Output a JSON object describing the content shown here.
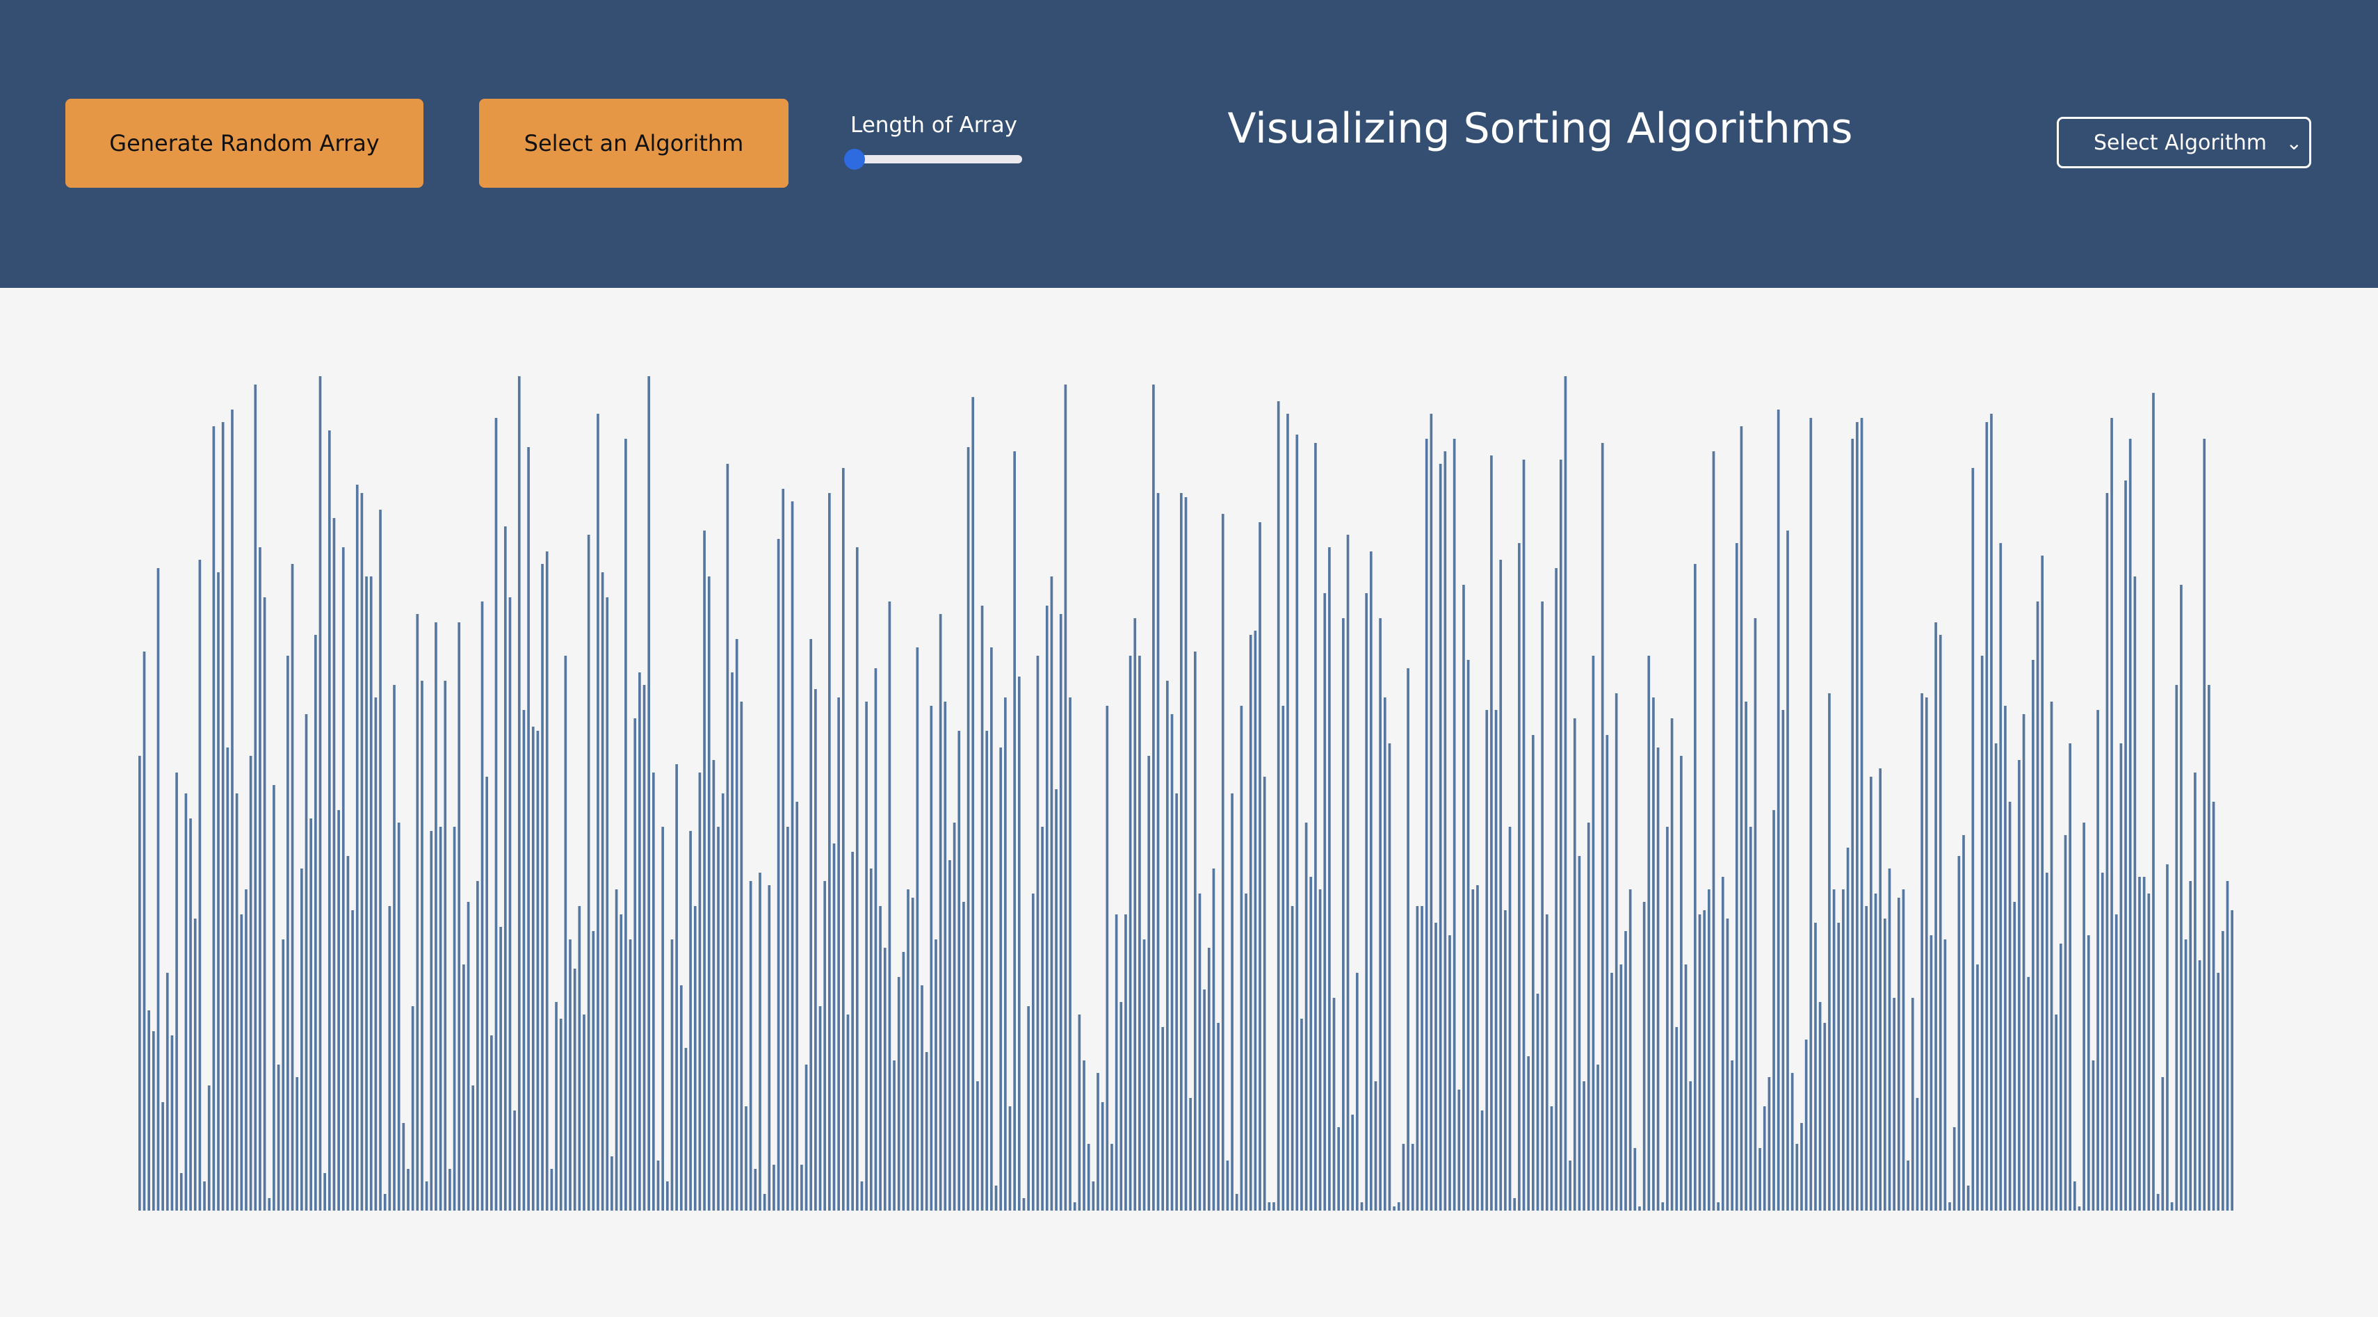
{
  "header": {
    "generate_button": "Generate Random Array",
    "select_button": "Select an Algorithm",
    "slider_label": "Length of Array",
    "slider_value": 0,
    "title": "Visualizing Sorting Algorithms",
    "algorithm_select": "Select Algorithm"
  },
  "colors": {
    "header_bg": "#354f73",
    "button_bg": "#e69745",
    "bar": "#5677a0",
    "background": "#f5f5f5",
    "slider_thumb": "#2f6be0"
  },
  "icons": {
    "dropdown": "chevron-down-icon"
  },
  "chart_data": {
    "type": "bar",
    "ylim": [
      0,
      100
    ],
    "values": [
      54.5,
      67,
      24,
      21.5,
      77,
      13,
      28.5,
      21,
      52.5,
      4.5,
      50,
      47,
      35,
      78,
      3.5,
      15,
      94,
      76.5,
      94.5,
      55.5,
      96,
      50,
      35.5,
      38.5,
      54.5,
      99,
      79.5,
      73.5,
      1.5,
      51,
      17.5,
      32.5,
      66.5,
      77.5,
      16,
      41,
      59.5,
      47,
      69,
      100,
      4.5,
      93.5,
      83,
      48,
      79.5,
      42.5,
      36,
      87,
      86,
      76,
      76,
      61.5,
      84,
      2,
      36.5,
      63,
      46.5,
      10.5,
      5,
      24.5,
      71.5,
      63.5,
      3.5,
      45.5,
      70.5,
      46,
      63.5,
      5,
      46,
      70.5,
      29.5,
      37,
      15,
      39.5,
      73,
      52,
      21,
      95,
      34,
      82,
      73.5,
      12,
      100,
      60,
      91.5,
      58,
      57.5,
      77.5,
      79,
      5,
      25,
      23,
      66.5,
      32.5,
      29,
      36.5,
      23.5,
      81,
      33.5,
      95.5,
      76.5,
      73.5,
      6.5,
      38.5,
      35.5,
      92.5,
      32.5,
      59,
      64.5,
      63,
      100,
      52.5,
      6,
      46,
      3.5,
      32.5,
      53.5,
      27,
      19.5,
      45.5,
      36.5,
      52.5,
      81.5,
      76,
      54,
      46,
      50,
      89.5,
      64.5,
      68.5,
      61,
      12.5,
      39.5,
      5,
      40.5,
      2,
      39,
      5.5,
      80.5,
      86.5,
      46,
      85,
      49,
      5.5,
      17.5,
      68.5,
      62.5,
      24.5,
      39.5,
      86,
      44,
      61.5,
      89,
      23.5,
      43,
      79.5,
      3.5,
      61,
      41,
      65,
      36.5,
      31.5,
      73,
      18,
      28,
      31,
      38.5,
      37.5,
      67.5,
      27,
      19,
      60.5,
      32.5,
      71.5,
      61,
      42,
      46.5,
      57.5,
      37,
      91.5,
      97.5,
      15.5,
      72.5,
      57.5,
      67.5,
      3,
      55.5,
      61.5,
      12.5,
      91,
      64,
      1.5,
      24.5,
      38,
      66.5,
      46,
      72.5,
      76,
      50.5,
      71.5,
      99,
      61.5,
      1,
      23.5,
      18,
      8,
      3.5,
      16.5,
      13,
      60.5,
      8,
      35.5,
      25,
      35.5,
      66.5,
      71,
      66.5,
      32.5,
      54.5,
      99,
      86,
      22,
      63.5,
      59.5,
      50,
      86,
      85.5,
      13.5,
      67,
      38,
      26.5,
      31.5,
      41,
      22.5,
      83.5,
      6,
      50,
      2,
      60.5,
      38,
      69,
      69.5,
      82.5,
      52,
      1,
      1,
      97,
      60.5,
      95.5,
      36.5,
      93,
      23,
      46.5,
      40,
      92,
      38.5,
      74,
      79.5,
      25.5,
      10,
      71,
      81,
      11.5,
      28.5,
      1,
      74,
      79,
      15.5,
      71,
      61.5,
      56,
      0.5,
      1,
      8,
      65,
      8,
      36.5,
      36.5,
      92.5,
      95.5,
      34.5,
      89.5,
      91,
      33,
      92.5,
      14.5,
      75,
      66,
      38.5,
      39,
      12,
      60,
      90.5,
      60,
      78,
      36,
      46,
      1.5,
      80,
      90,
      18.5,
      57,
      26,
      73,
      35.5,
      12.5,
      77,
      90,
      100,
      6,
      59,
      42.5,
      15.5,
      46.5,
      66.5,
      17.5,
      92,
      57,
      28.5,
      62,
      29.5,
      33.5,
      38.5,
      7.5,
      0.5,
      37,
      66.5,
      61.5,
      55.5,
      1,
      46,
      59,
      22,
      54.5,
      29.5,
      15.5,
      77.5,
      35.5,
      36,
      38.5,
      91,
      1,
      40,
      35,
      18,
      80,
      94,
      61,
      46,
      71,
      7.5,
      12.5,
      16,
      48,
      96,
      60,
      81.5,
      16.5,
      8,
      10.5,
      20.5,
      95,
      34.5,
      25,
      22.5,
      62,
      38.5,
      34.5,
      38.5,
      43.5,
      92.5,
      94.5,
      95,
      36.5,
      52,
      38,
      53,
      35,
      41,
      25.5,
      37.5,
      38.5,
      6,
      25.5,
      13.5,
      62,
      61.5,
      33,
      70.5,
      69,
      32.5,
      1,
      10,
      42.5,
      45,
      3,
      89,
      29.5,
      66.5,
      94.5,
      95.5,
      56,
      80,
      60.5,
      49,
      37,
      54,
      59.5,
      28,
      66,
      73,
      78.5,
      40.5,
      61,
      23.5,
      32,
      45,
      56,
      3.5,
      0.5,
      46.5,
      33,
      18,
      60,
      40.5,
      86,
      95,
      35.5,
      56,
      87.5,
      92.5,
      76,
      40,
      40,
      38,
      98,
      2,
      16,
      41.5,
      1,
      63,
      75,
      32.5,
      39.5,
      52.5,
      30,
      92.5,
      63,
      49,
      28.5,
      33.5,
      39.5,
      36
    ]
  }
}
